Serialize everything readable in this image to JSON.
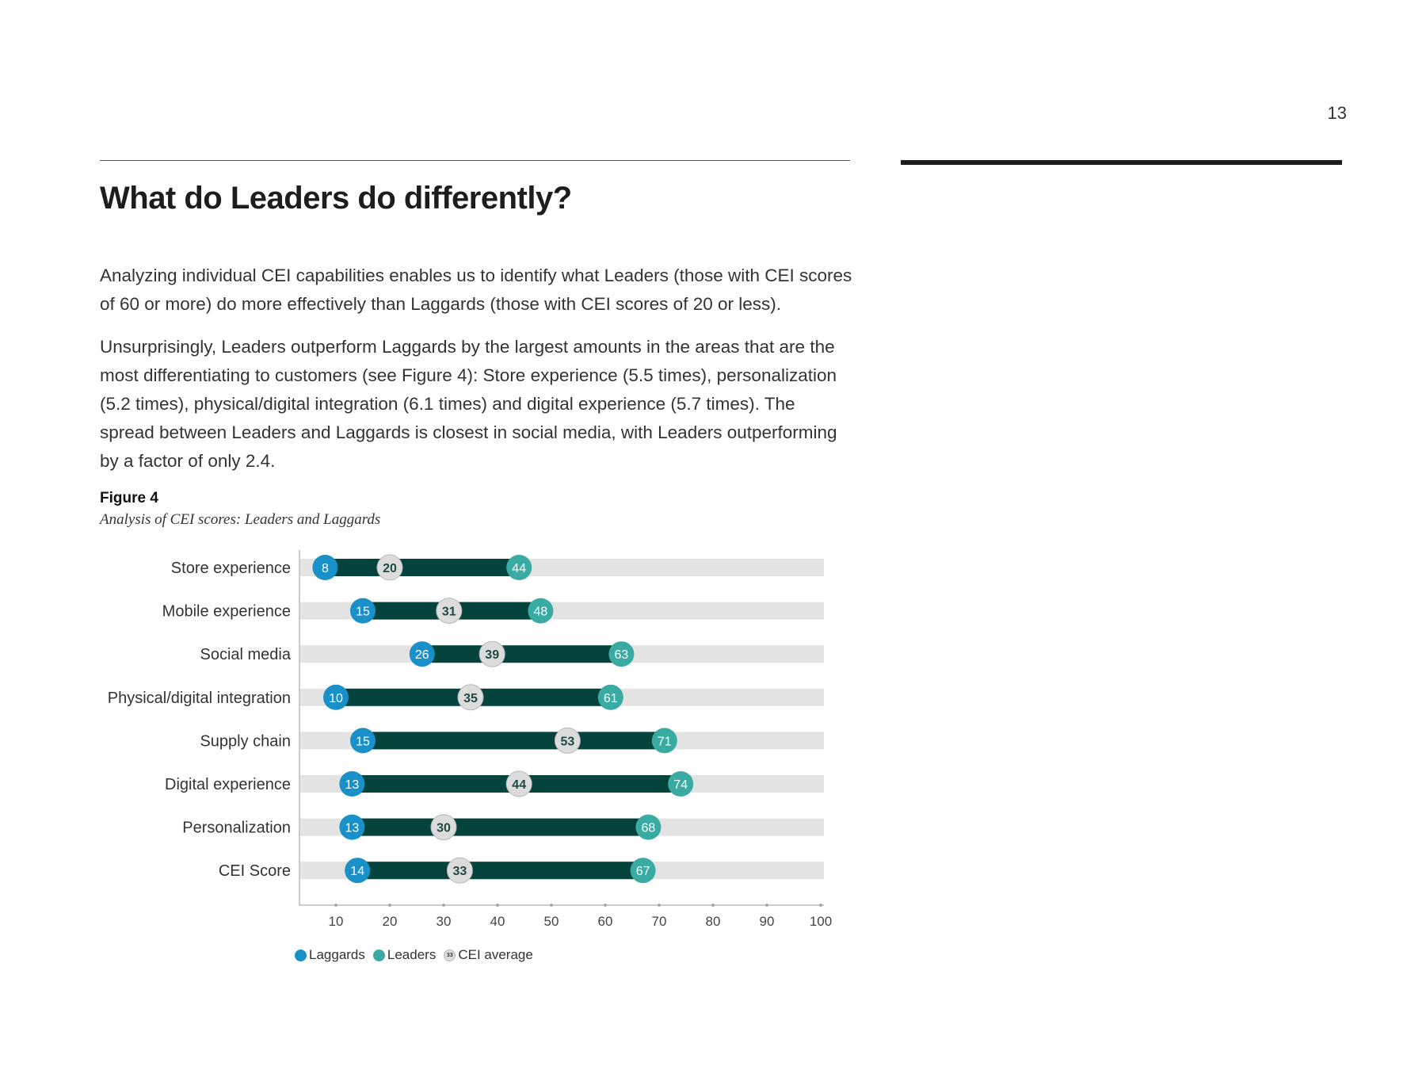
{
  "page_number": "13",
  "heading": "What do Leaders do differently?",
  "paragraphs": [
    "Analyzing individual CEI capabilities enables us to identify what Leaders (those with CEI scores of 60 or more) do more effectively than Laggards (those with CEI scores of 20 or less).",
    "Unsurprisingly, Leaders outperform Laggards by the largest amounts in the areas that are the most differentiating to customers (see Figure 4): Store experience (5.5 times), personalization (5.2 times), physical/digital integration (6.1 times) and digital experience (5.7 times). The spread between Leaders and Laggards is closest in social media, with Leaders outperforming by a factor of only 2.4."
  ],
  "figure": {
    "label": "Figure 4",
    "caption": "Analysis of CEI scores: Leaders and Laggards"
  },
  "colors": {
    "laggards": "#1a90c8",
    "leaders": "#3aaba2",
    "average": "#dcdcdc",
    "range_bar": "#05443d",
    "track": "#e3e3e3"
  },
  "chart_data": {
    "type": "dumbbell",
    "categories": [
      "Store experience",
      "Mobile experience",
      "Social media",
      "Physical/digital integration",
      "Supply chain",
      "Digital experience",
      "Personalization",
      "CEI Score"
    ],
    "series": [
      {
        "name": "Laggards",
        "values": [
          8,
          15,
          26,
          10,
          15,
          13,
          13,
          14
        ]
      },
      {
        "name": "CEI average",
        "values": [
          20,
          31,
          39,
          35,
          53,
          44,
          30,
          33
        ]
      },
      {
        "name": "Leaders",
        "values": [
          44,
          48,
          63,
          61,
          71,
          74,
          68,
          67
        ]
      }
    ],
    "x_ticks": [
      10,
      20,
      30,
      40,
      50,
      60,
      70,
      80,
      90,
      100
    ],
    "xlim": [
      3,
      100
    ],
    "legend_position": "bottom-left",
    "legend": {
      "laggards": "Laggards",
      "leaders": "Leaders",
      "average": "CEI average",
      "average_icon_text": "33"
    }
  }
}
